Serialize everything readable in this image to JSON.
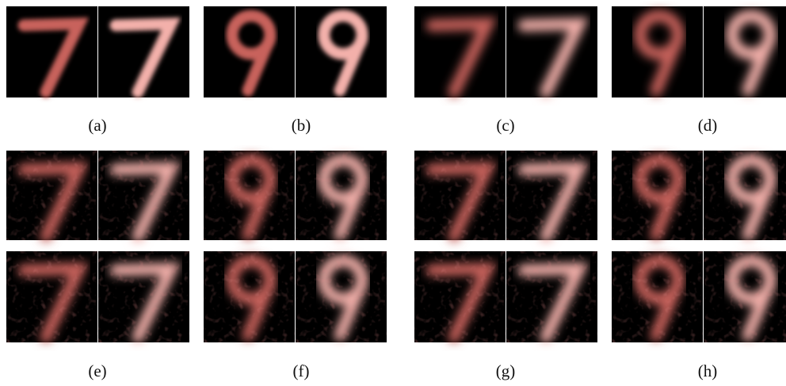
{
  "captions": [
    "(a)",
    "(b)",
    "(c)",
    "(d)",
    "(e)",
    "(f)",
    "(g)",
    "(h)"
  ]
}
